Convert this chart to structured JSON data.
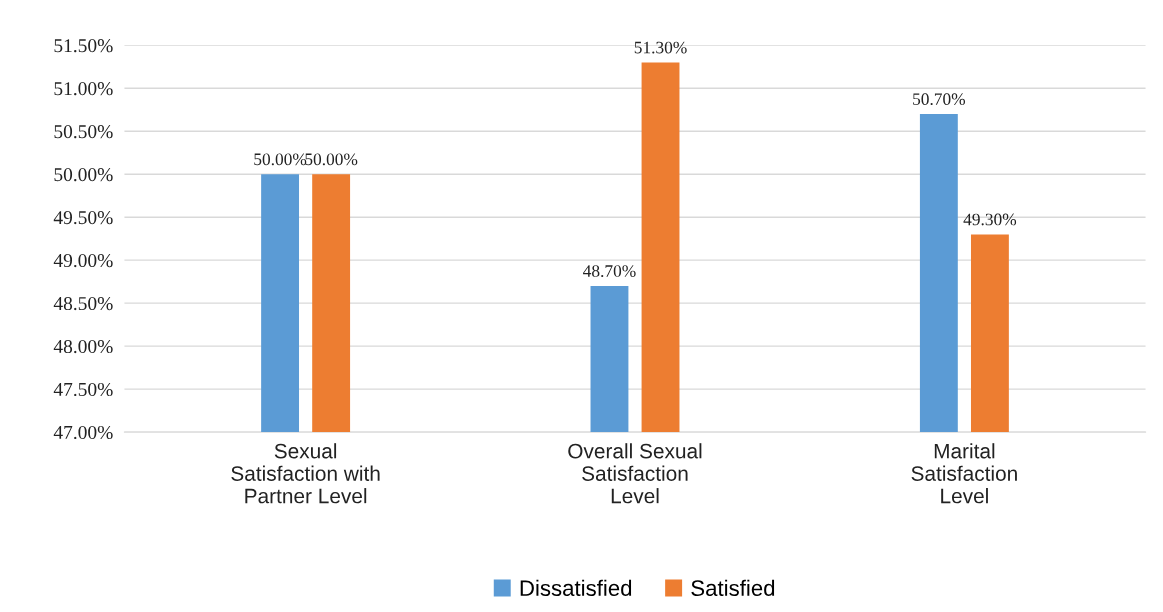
{
  "chart_data": {
    "type": "bar",
    "categories": [
      "Sexual\nSatisfaction with\nPartner Level",
      "Overall Sexual\nSatisfaction\nLevel",
      "Marital\nSatisfaction\nLevel"
    ],
    "series": [
      {
        "name": "Dissatisfied",
        "color": "#5b9bd5",
        "values": [
          50.0,
          48.7,
          50.7
        ],
        "value_labels": [
          "50.00%",
          "48.70%",
          "50.70%"
        ]
      },
      {
        "name": "Satisfied",
        "color": "#ed7d31",
        "values": [
          50.0,
          51.3,
          49.3
        ],
        "value_labels": [
          "50.00%",
          "51.30%",
          "49.30%"
        ]
      }
    ],
    "ylim": [
      47.0,
      51.5
    ],
    "yticks": [
      {
        "value": 47.0,
        "label": "47.00%"
      },
      {
        "value": 47.5,
        "label": "47.50%"
      },
      {
        "value": 48.0,
        "label": "48.00%"
      },
      {
        "value": 48.5,
        "label": "48.50%"
      },
      {
        "value": 49.0,
        "label": "49.00%"
      },
      {
        "value": 49.5,
        "label": "49.50%"
      },
      {
        "value": 50.0,
        "label": "50.00%"
      },
      {
        "value": 50.5,
        "label": "50.50%"
      },
      {
        "value": 51.0,
        "label": "51.00%"
      },
      {
        "value": 51.5,
        "label": "51.50%"
      }
    ],
    "grid": "y",
    "legend": "bottom"
  }
}
